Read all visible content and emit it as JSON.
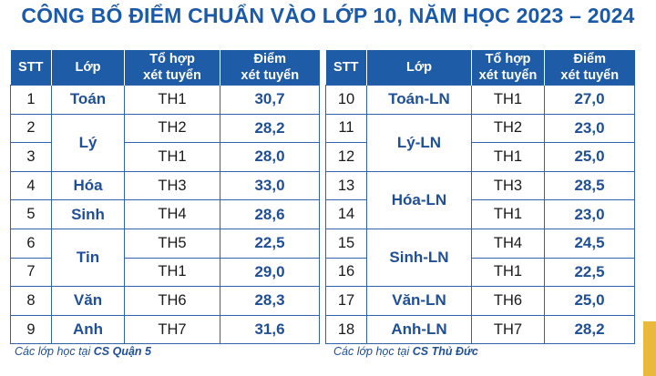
{
  "title": "CÔNG BỐ ĐIỂM CHUẨN VÀO LỚP 10, NĂM HỌC 2023 – 2024",
  "headers": {
    "stt": "STT",
    "lop": "Lớp",
    "tohop_1": "Tổ hợp",
    "tohop_2": "xét tuyển",
    "diem_1": "Điểm",
    "diem_2": "xét tuyển"
  },
  "left_rows": [
    {
      "stt": "1",
      "lop": "Toán",
      "tohop": "TH1",
      "diem": "30,7"
    },
    {
      "stt": "2",
      "lop": "Lý",
      "tohop": "TH2",
      "diem": "28,2"
    },
    {
      "stt": "3",
      "tohop": "TH1",
      "diem": "28,0"
    },
    {
      "stt": "4",
      "lop": "Hóa",
      "tohop": "TH3",
      "diem": "33,0"
    },
    {
      "stt": "5",
      "lop": "Sinh",
      "tohop": "TH4",
      "diem": "28,6"
    },
    {
      "stt": "6",
      "lop": "Tin",
      "tohop": "TH5",
      "diem": "22,5"
    },
    {
      "stt": "7",
      "tohop": "TH1",
      "diem": "29,0"
    },
    {
      "stt": "8",
      "lop": "Văn",
      "tohop": "TH6",
      "diem": "28,3"
    },
    {
      "stt": "9",
      "lop": "Anh",
      "tohop": "TH7",
      "diem": "31,6"
    }
  ],
  "right_rows": [
    {
      "stt": "10",
      "lop": "Toán-LN",
      "tohop": "TH1",
      "diem": "27,0"
    },
    {
      "stt": "11",
      "lop": "Lý-LN",
      "tohop": "TH2",
      "diem": "23,0"
    },
    {
      "stt": "12",
      "tohop": "TH1",
      "diem": "25,0"
    },
    {
      "stt": "13",
      "lop": "Hóa-LN",
      "tohop": "TH3",
      "diem": "28,5"
    },
    {
      "stt": "14",
      "tohop": "TH1",
      "diem": "23,0"
    },
    {
      "stt": "15",
      "lop": "Sinh-LN",
      "tohop": "TH4",
      "diem": "24,5"
    },
    {
      "stt": "16",
      "tohop": "TH1",
      "diem": "22,5"
    },
    {
      "stt": "17",
      "lop": "Văn-LN",
      "tohop": "TH6",
      "diem": "25,0"
    },
    {
      "stt": "18",
      "lop": "Anh-LN",
      "tohop": "TH7",
      "diem": "28,2"
    }
  ],
  "footer_left": {
    "prefix": "Các lớp học tại ",
    "campus": "CS Quận 5"
  },
  "footer_right": {
    "prefix": "Các lớp học tại ",
    "campus": "CS Thủ Đức"
  }
}
